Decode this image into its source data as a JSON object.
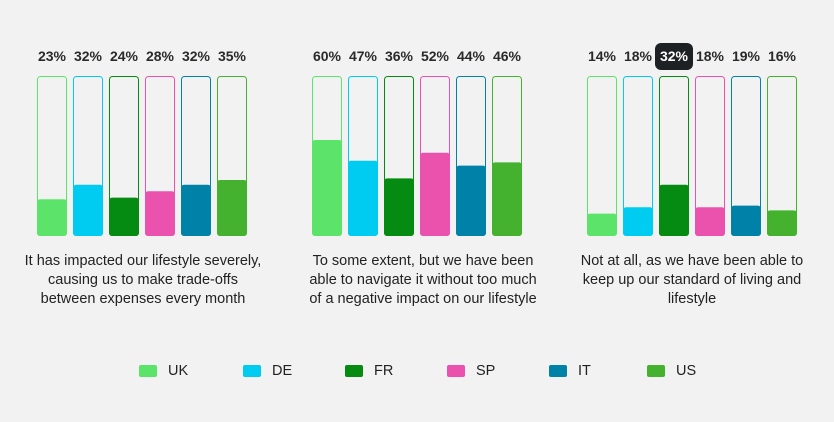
{
  "chart_data": {
    "type": "bar",
    "categories": [
      "UK",
      "DE",
      "FR",
      "SP",
      "IT",
      "US"
    ],
    "colors": [
      "#5ce46a",
      "#00cbf1",
      "#068b12",
      "#ea52ae",
      "#0081a8",
      "#44b22e"
    ],
    "ylim": [
      0,
      100
    ],
    "groups": [
      {
        "label": "It has impacted our lifestyle severely, causing us to make trade-offs between expenses every month",
        "values": [
          23,
          32,
          24,
          28,
          32,
          35
        ],
        "value_labels": [
          "23%",
          "32%",
          "24%",
          "28%",
          "32%",
          "35%"
        ],
        "highlight": null
      },
      {
        "label": "To some extent, but we have been able to navigate it without too much of a negative impact on our lifestyle",
        "values": [
          60,
          47,
          36,
          52,
          44,
          46
        ],
        "value_labels": [
          "60%",
          "47%",
          "36%",
          "52%",
          "44%",
          "46%"
        ],
        "highlight": null
      },
      {
        "label": "Not at all, as we have been able to keep up our standard of living and lifestyle",
        "values": [
          14,
          18,
          32,
          18,
          19,
          16
        ],
        "value_labels": [
          "14%",
          "18%",
          "32%",
          "18%",
          "19%",
          "16%"
        ],
        "highlight": 2
      }
    ]
  }
}
